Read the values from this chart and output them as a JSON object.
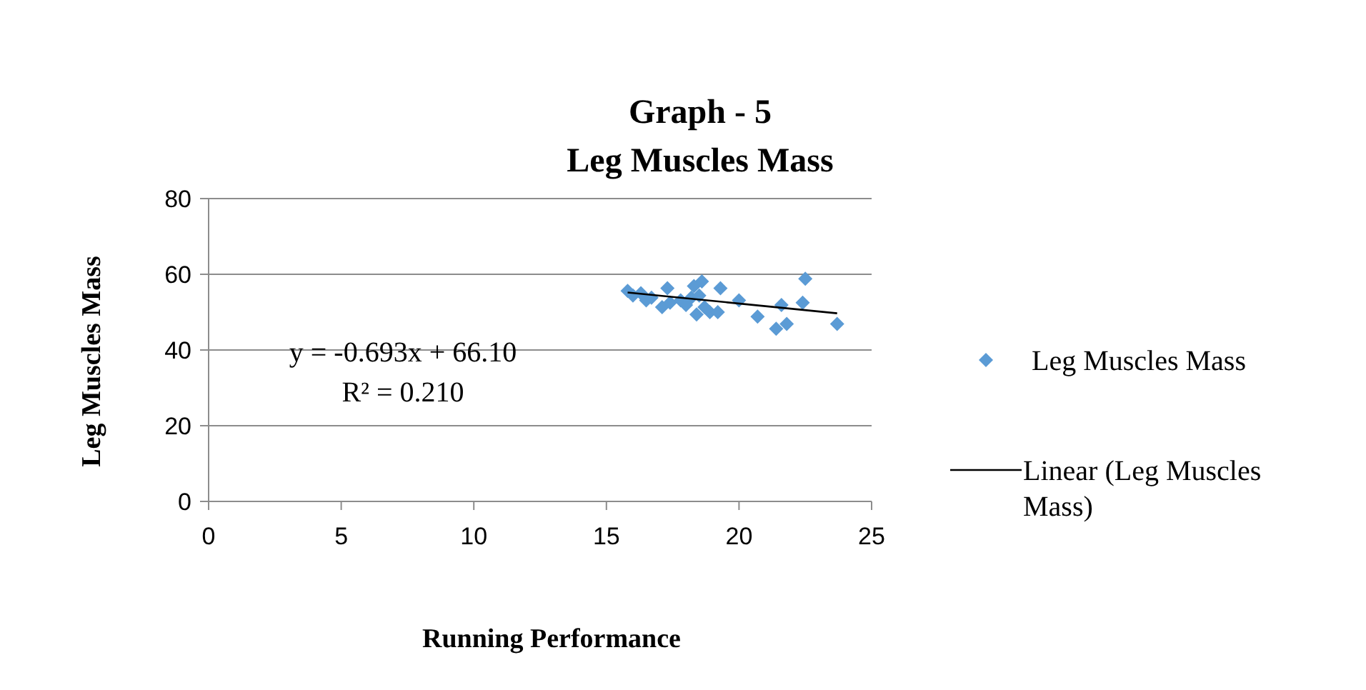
{
  "chart_data": {
    "type": "scatter",
    "title": "Graph - 5\nLeg Muscles Mass",
    "xlabel": "Running Performance",
    "ylabel": "Leg Muscles Mass",
    "xlim": [
      0,
      25
    ],
    "xticks": [
      0,
      5,
      10,
      15,
      20,
      25
    ],
    "ylim": [
      0,
      80
    ],
    "yticks": [
      0,
      20,
      40,
      60,
      80
    ],
    "grid": "y",
    "legend": "right",
    "annotations": [
      "y = -0.693x + 66.10",
      "R² = 0.210"
    ],
    "series": [
      {
        "name": "Leg Muscles Mass",
        "color": "#5b9bd5",
        "marker": "diamond",
        "x": [
          15.8,
          16.0,
          16.3,
          16.5,
          16.7,
          17.1,
          17.3,
          17.4,
          17.8,
          18.0,
          18.2,
          18.3,
          18.4,
          18.5,
          18.6,
          18.7,
          18.9,
          19.2,
          19.3,
          20.0,
          20.7,
          21.4,
          21.6,
          21.8,
          22.4,
          22.5,
          23.7
        ],
        "values": [
          55.6,
          54.4,
          55.0,
          53.1,
          53.8,
          51.3,
          56.3,
          52.5,
          53.1,
          51.9,
          53.8,
          56.9,
          49.4,
          54.4,
          58.1,
          51.3,
          50.0,
          50.0,
          56.3,
          53.1,
          48.8,
          45.6,
          51.9,
          46.9,
          52.5,
          58.8,
          46.9
        ]
      },
      {
        "name": "Linear (Leg Muscles Mass)",
        "type": "line",
        "color": "#000000",
        "marker": "none",
        "x": [
          15.8,
          23.7
        ],
        "values": [
          55.2,
          49.7
        ]
      }
    ]
  }
}
